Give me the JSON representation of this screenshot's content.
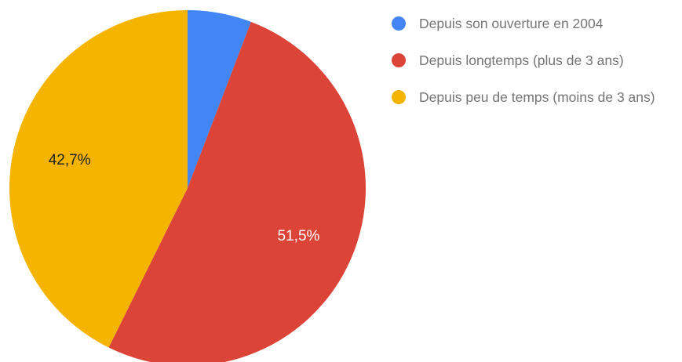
{
  "chart_data": {
    "type": "pie",
    "categories": [
      "Depuis son ouverture en 2004",
      "Depuis longtemps (plus de 3 ans)",
      "Depuis peu de temps (moins de 3 ans)"
    ],
    "values": [
      5.8,
      51.5,
      42.7
    ],
    "value_labels": [
      null,
      "51,5%",
      "42,7%"
    ],
    "colors": [
      "#4285f4",
      "#db4437",
      "#f4b400"
    ]
  }
}
